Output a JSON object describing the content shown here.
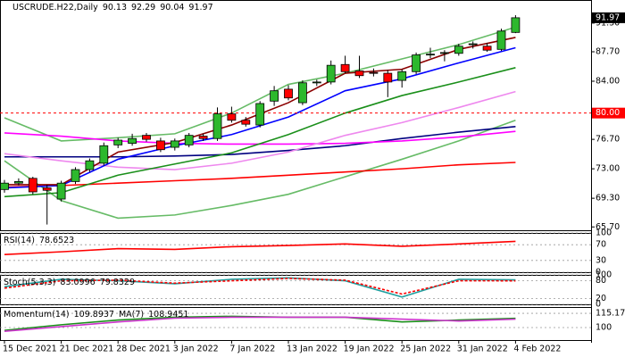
{
  "chart_data": [
    {
      "type": "candlestick",
      "title": "USCRUDE.H22,Daily",
      "categories": [
        "15 Dec 2021",
        null,
        null,
        null,
        "21 Dec 2021",
        null,
        null,
        null,
        "28 Dec 2021",
        null,
        null,
        null,
        "3 Jan 2022",
        null,
        null,
        null,
        "7 Jan 2022",
        null,
        null,
        null,
        "13 Jan 2022",
        null,
        null,
        null,
        "19 Jan 2022",
        null,
        null,
        null,
        "25 Jan 2022",
        null,
        null,
        null,
        "31 Jan 2022",
        null,
        null,
        null,
        "4 Feb 2022"
      ],
      "open": [
        70.4,
        71.2,
        71.8,
        70.6,
        69.2,
        71.4,
        72.9,
        73.7,
        76.0,
        76.2,
        77.2,
        76.5,
        75.7,
        76.0,
        77.1,
        76.8,
        79.9,
        79.1,
        78.5,
        81.5,
        83.0,
        81.3,
        83.8,
        83.9,
        86.1,
        85.3,
        85.1,
        85.0,
        84.1,
        85.2,
        87.3,
        87.5,
        87.5,
        88.6,
        88.4,
        88.0,
        90.13
      ],
      "high": [
        71.6,
        71.8,
        72.0,
        71.0,
        71.5,
        73.2,
        74.3,
        76.3,
        76.9,
        77.4,
        77.5,
        76.9,
        76.8,
        77.5,
        77.4,
        80.7,
        80.8,
        79.5,
        81.5,
        83.4,
        83.5,
        84.1,
        84.2,
        86.6,
        87.2,
        87.2,
        85.6,
        85.4,
        85.5,
        87.6,
        88.2,
        87.9,
        88.7,
        89.0,
        88.8,
        90.6,
        92.29
      ],
      "low": [
        70.0,
        70.9,
        69.8,
        66.0,
        68.9,
        71.1,
        72.6,
        73.4,
        75.6,
        75.9,
        76.4,
        75.1,
        75.3,
        75.7,
        76.5,
        76.5,
        78.8,
        78.3,
        78.2,
        80.9,
        81.6,
        81.0,
        83.4,
        83.6,
        85.0,
        84.4,
        84.6,
        82.0,
        83.2,
        84.9,
        86.9,
        86.5,
        87.2,
        88.1,
        87.7,
        87.8,
        90.04
      ],
      "close": [
        71.2,
        71.4,
        70.1,
        70.3,
        71.2,
        72.9,
        74.0,
        75.9,
        76.6,
        76.8,
        76.7,
        75.4,
        76.5,
        77.2,
        76.8,
        79.9,
        79.1,
        78.6,
        81.2,
        82.8,
        81.9,
        83.8,
        83.9,
        86.0,
        85.2,
        84.7,
        85.0,
        83.9,
        85.2,
        87.3,
        87.4,
        87.6,
        88.4,
        88.7,
        87.9,
        90.3,
        91.97
      ],
      "up_color": "#2db82d",
      "down_color": "#ff0000",
      "x": [
        0,
        4,
        8,
        12,
        16,
        20,
        24,
        28,
        32,
        36
      ],
      "series": [
        {
          "color": "#66bb66",
          "values": [
            79.4,
            76.5,
            76.9,
            77.4,
            80.0,
            83.6,
            85.0,
            86.8,
            88.6,
            90.8
          ]
        },
        {
          "color": "#66bb66",
          "values": [
            74.0,
            69.0,
            66.8,
            67.2,
            68.4,
            69.8,
            72.0,
            74.2,
            76.5,
            79.1
          ]
        },
        {
          "color": "#ff0000",
          "values": [
            70.7,
            70.9,
            71.2,
            71.5,
            71.8,
            72.2,
            72.6,
            73.0,
            73.5,
            73.8
          ]
        },
        {
          "color": "#000080",
          "values": [
            74.5,
            74.5,
            74.5,
            74.6,
            74.8,
            75.3,
            75.9,
            76.8,
            77.6,
            78.3
          ]
        },
        {
          "color": "#ff00ff",
          "values": [
            77.5,
            77.1,
            76.5,
            76.2,
            76.1,
            76.1,
            76.2,
            76.5,
            77.0,
            77.7
          ]
        },
        {
          "color": "#ee88ee",
          "values": [
            74.9,
            74.0,
            73.2,
            72.9,
            73.7,
            75.1,
            77.2,
            78.8,
            80.7,
            82.7
          ]
        },
        {
          "color": "#1a8f1a",
          "values": [
            69.5,
            70.0,
            72.2,
            73.6,
            75.0,
            77.3,
            80.0,
            82.2,
            83.9,
            85.7
          ]
        },
        {
          "color": "#0000ff",
          "values": [
            70.6,
            70.9,
            74.2,
            75.9,
            77.3,
            79.5,
            82.8,
            84.3,
            86.3,
            88.2
          ]
        },
        {
          "color": "#8b0000",
          "values": [
            71.0,
            71.0,
            75.1,
            76.3,
            78.5,
            81.3,
            85.0,
            85.5,
            88.0,
            89.5
          ]
        }
      ],
      "hline": {
        "value": 80,
        "label": "80.00",
        "color": "#ff0000"
      },
      "ylim": [
        65.28,
        94.2
      ],
      "yticks": [
        {
          "value": 65.7,
          "label": "65.70"
        },
        {
          "value": 69.3,
          "label": "69.30"
        },
        {
          "value": 73.0,
          "label": "73.00"
        },
        {
          "value": 76.7,
          "label": "76.70"
        },
        {
          "value": 84.0,
          "label": "84.00"
        },
        {
          "value": 87.7,
          "label": "87.70"
        },
        {
          "value": 91.3,
          "label": "91.30"
        }
      ]
    },
    {
      "type": "line",
      "title": "RSI(14)",
      "x": [
        0,
        4,
        8,
        12,
        16,
        20,
        24,
        28,
        32,
        36
      ],
      "series": [
        {
          "color": "#ff0000",
          "values": [
            45,
            52,
            60,
            58,
            65,
            68,
            72,
            66,
            72,
            78.6523
          ]
        }
      ],
      "ylim": [
        0,
        100
      ],
      "yticks": [
        0,
        30,
        70,
        100
      ],
      "grid": true
    },
    {
      "type": "line",
      "title": "Stoch(5,3,3)",
      "x": [
        0,
        4,
        8,
        12,
        16,
        20,
        24,
        28,
        32,
        36
      ],
      "series": [
        {
          "color": "#20a0a0",
          "values": [
            60,
            85,
            80,
            70,
            85,
            90,
            80,
            25,
            85,
            83.0996
          ]
        },
        {
          "color": "#ff0000",
          "dashed": true,
          "values": [
            55,
            80,
            82,
            72,
            80,
            88,
            82,
            35,
            80,
            79.8329
          ]
        }
      ],
      "ylim": [
        0,
        100
      ],
      "yticks": [
        0,
        20,
        80,
        100
      ],
      "grid": true
    },
    {
      "type": "line",
      "x": [
        0,
        4,
        8,
        12,
        16,
        20,
        24,
        28,
        32,
        36
      ],
      "series": [
        {
          "name": "Momentum(14)",
          "color": "#1a8f1a",
          "values": [
            97,
            103,
            108,
            111,
            112,
            111,
            111,
            106,
            108,
            109.8937
          ]
        },
        {
          "name": "MA(7)",
          "color": "#cc33cc",
          "values": [
            96,
            101,
            106,
            110,
            111,
            111,
            111,
            109,
            107,
            108.9451
          ]
        }
      ],
      "ylim": [
        86.7,
        121.9
      ],
      "yticks": [
        100,
        115.1745
      ],
      "grid": true
    }
  ]
}
